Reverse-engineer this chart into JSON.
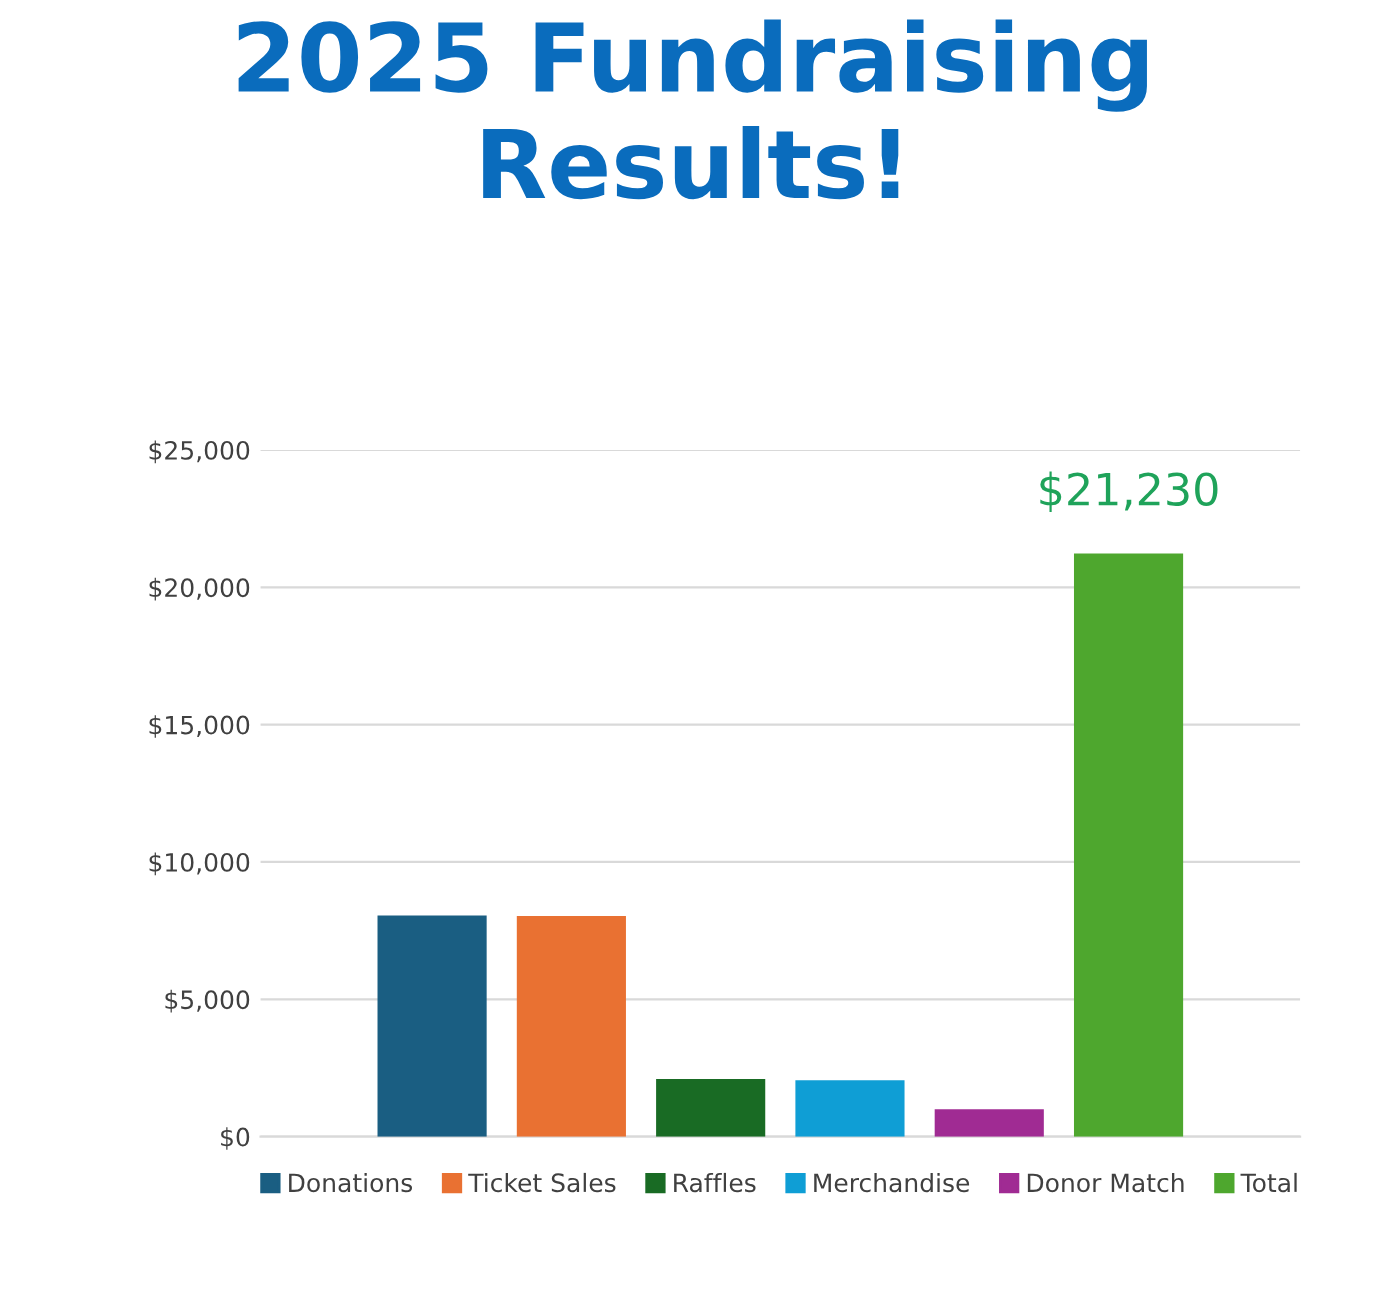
{
  "chart_data": {
    "type": "bar",
    "title": "2025 Fundraising Results!",
    "categories": [
      null
    ],
    "series": [
      {
        "name": "Donations",
        "color": "#1a5e82",
        "values": [
          8050
        ]
      },
      {
        "name": "Ticket Sales",
        "color": "#e97132",
        "values": [
          8030
        ]
      },
      {
        "name": "Raffles",
        "color": "#196b24",
        "values": [
          2100
        ]
      },
      {
        "name": "Merchandise",
        "color": "#0f9ed5",
        "values": [
          2050
        ]
      },
      {
        "name": "Donor Match",
        "color": "#a02b93",
        "values": [
          1000
        ]
      },
      {
        "name": "Total",
        "color": "#4ea72e",
        "values": [
          21230
        ],
        "value_labels": [
          "$21,230"
        ]
      }
    ],
    "ylim": [
      0,
      25000
    ],
    "yticks": [
      {
        "value": 0,
        "label": "$0"
      },
      {
        "value": 5000,
        "label": "$5,000"
      },
      {
        "value": 10000,
        "label": "$10,000"
      },
      {
        "value": 15000,
        "label": "$15,000"
      },
      {
        "value": 20000,
        "label": "$20,000"
      },
      {
        "value": 25000,
        "label": "$25,000"
      }
    ],
    "grid": "y",
    "legend": "bottom"
  }
}
